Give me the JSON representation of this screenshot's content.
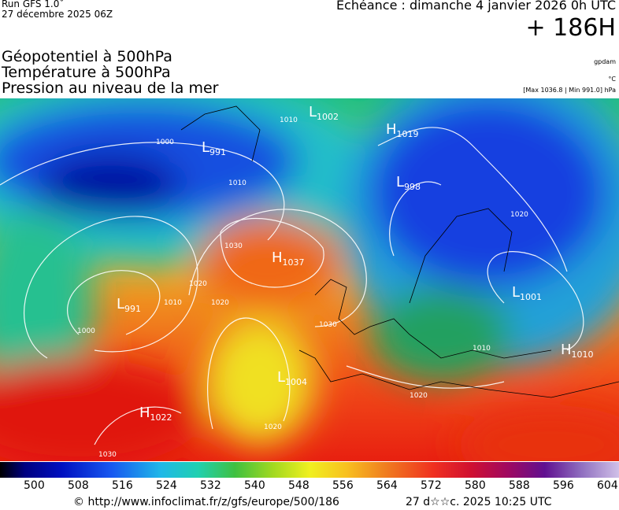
{
  "header": {
    "run": "Run GFS 1.0˚",
    "date": "27 décembre 2025 06Z",
    "forecast": "Echéance : dimanche 4 janvier 2026 0h UTC",
    "lead": "+ 186H",
    "fields": [
      "Géopotentiel à 500hPa",
      "Température à 500hPa",
      "Pression au niveau de la mer"
    ],
    "units": [
      "gpdam",
      "°C",
      "[Max 1036.8 | Min 991.0] hPa"
    ]
  },
  "map": {
    "centers": [
      {
        "letter": "L",
        "value": "1002"
      },
      {
        "letter": "H",
        "value": "1019"
      },
      {
        "letter": "L",
        "value": "991"
      },
      {
        "letter": "L",
        "value": "998"
      },
      {
        "letter": "H",
        "value": "1037"
      },
      {
        "letter": "L",
        "value": "991"
      },
      {
        "letter": "L",
        "value": "1001"
      },
      {
        "letter": "H",
        "value": "1010"
      },
      {
        "letter": "L",
        "value": "1004"
      },
      {
        "letter": "H",
        "value": "1022"
      }
    ],
    "isobar_labels": [
      "1010",
      "1000",
      "1010",
      "1020",
      "1030",
      "1020",
      "1030",
      "1000",
      "1010",
      "1020",
      "1030",
      "1020",
      "1010",
      "1020"
    ]
  },
  "colorbar": {
    "labels": [
      "500",
      "508",
      "516",
      "524",
      "532",
      "540",
      "548",
      "556",
      "564",
      "572",
      "580",
      "588",
      "596",
      "604"
    ]
  },
  "footer": {
    "url": "© http://www.infoclimat.fr/z/gfs/europe/500/186",
    "timestamp": "27 d☆☆c. 2025 10:25 UTC"
  }
}
